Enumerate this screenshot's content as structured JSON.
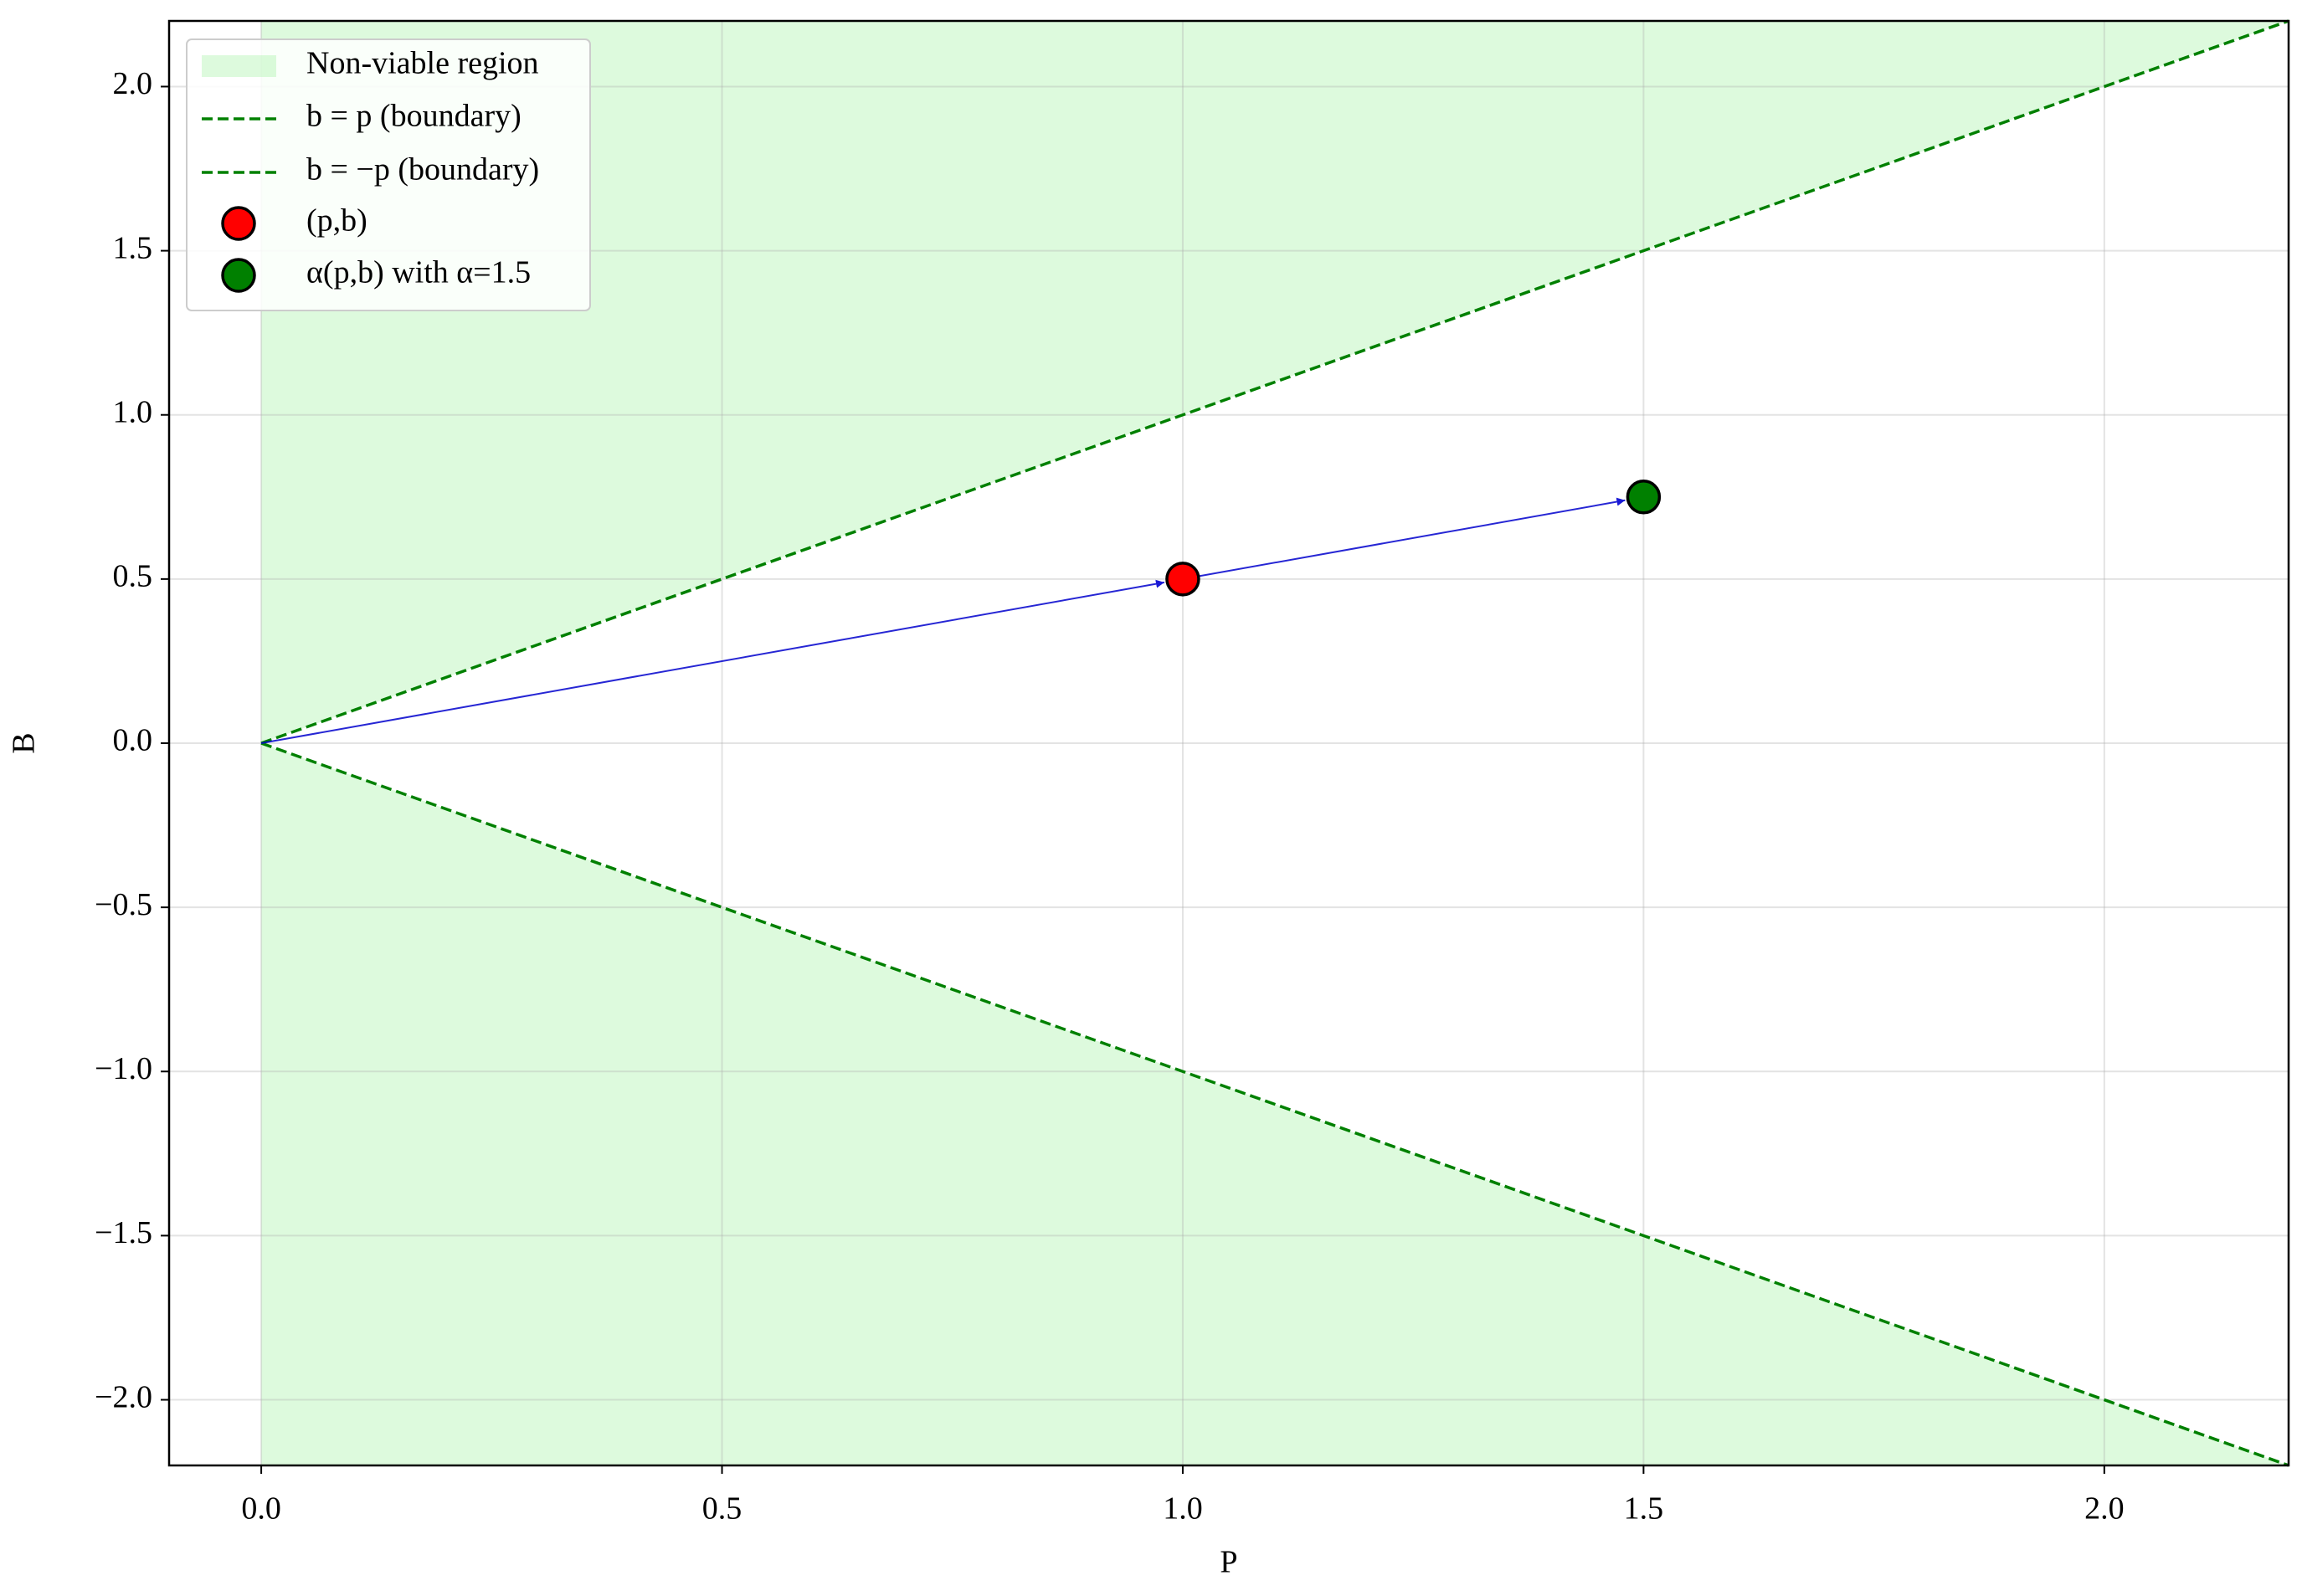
{
  "chart_data": {
    "type": "line",
    "xlabel": "P",
    "ylabel": "B",
    "xlim": [
      -0.1,
      2.2
    ],
    "ylim": [
      -2.2,
      2.2
    ],
    "xticks": [
      {
        "value": 0,
        "label": "0.0"
      },
      {
        "value": 0.5,
        "label": "0.5"
      },
      {
        "value": 1,
        "label": "1.0"
      },
      {
        "value": 1.5,
        "label": "1.5"
      },
      {
        "value": 2,
        "label": "2.0"
      }
    ],
    "yticks": [
      {
        "value": -2,
        "label": "−2.0"
      },
      {
        "value": -1.5,
        "label": "−1.5"
      },
      {
        "value": -1,
        "label": "−1.0"
      },
      {
        "value": -0.5,
        "label": "−0.5"
      },
      {
        "value": 0,
        "label": "0.0"
      },
      {
        "value": 0.5,
        "label": "0.5"
      },
      {
        "value": 1,
        "label": "1.0"
      },
      {
        "value": 1.5,
        "label": "1.5"
      },
      {
        "value": 2,
        "label": "2.0"
      }
    ],
    "grid": true,
    "legend": "upper left",
    "region": {
      "name": "Non-viable region",
      "color": "#90ee90",
      "alpha": 0.3,
      "x": [
        0,
        2.2
      ],
      "upper": [
        0,
        2.2
      ],
      "lower": [
        0,
        -2.2
      ]
    },
    "series": [
      {
        "name": "b = p (boundary)",
        "color": "#008000",
        "dashed": true,
        "x": [
          0,
          2.2
        ],
        "values": [
          0,
          2.2
        ]
      },
      {
        "name": "b = −p (boundary)",
        "color": "#008000",
        "dashed": true,
        "x": [
          0,
          2.2
        ],
        "values": [
          0,
          -2.2
        ]
      }
    ],
    "points": [
      {
        "name": "(p,b)",
        "color": "#ff0000",
        "x": 1,
        "y": 0.5
      },
      {
        "name": "α(p,b) with α=1.5",
        "color": "#008000",
        "x": 1.5,
        "y": 0.75
      }
    ],
    "arrows": [
      {
        "color": "#0000cc",
        "x": [
          0,
          1
        ],
        "y": [
          0,
          0.5
        ]
      },
      {
        "color": "#0000cc",
        "x": [
          1,
          1.5
        ],
        "y": [
          0.5,
          0.75
        ]
      }
    ]
  }
}
